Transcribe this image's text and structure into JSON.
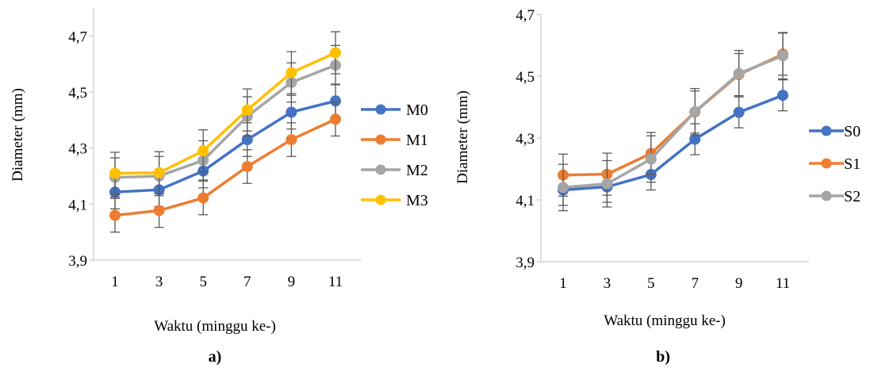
{
  "chart_data": [
    {
      "type": "line",
      "panel_label": "a)",
      "xlabel": "Waktu (minggu ke-)",
      "ylabel": "Diameter (mm)",
      "ylim": [
        3.9,
        4.8
      ],
      "yticks": [
        "3,9",
        "4,1",
        "4,3",
        "4,5",
        "4,7"
      ],
      "x": [
        "1",
        "3",
        "5",
        "7",
        "9",
        "11"
      ],
      "grid": false,
      "legend_position": "right",
      "series": [
        {
          "name": "M0",
          "color": "#4472C4",
          "values": [
            4.143,
            4.151,
            4.218,
            4.33,
            4.428,
            4.468
          ],
          "error": [
            0.06,
            0.06,
            0.06,
            0.06,
            0.06,
            0.06
          ]
        },
        {
          "name": "M1",
          "color": "#ED7D31",
          "values": [
            4.06,
            4.077,
            4.122,
            4.234,
            4.33,
            4.403
          ],
          "error": [
            0.06,
            0.06,
            0.06,
            0.06,
            0.06,
            0.06
          ]
        },
        {
          "name": "M2",
          "color": "#A5A5A5",
          "values": [
            4.195,
            4.2,
            4.256,
            4.413,
            4.534,
            4.596
          ],
          "error": [
            0.07,
            0.07,
            0.07,
            0.07,
            0.07,
            0.07
          ]
        },
        {
          "name": "M3",
          "color": "#FFC000",
          "values": [
            4.21,
            4.212,
            4.29,
            4.436,
            4.569,
            4.64
          ],
          "error": [
            0.075,
            0.075,
            0.075,
            0.075,
            0.075,
            0.075
          ]
        }
      ]
    },
    {
      "type": "line",
      "panel_label": "b)",
      "xlabel": "Waktu (minggu ke-)",
      "ylabel": "Diameter (mm)",
      "ylim": [
        3.9,
        4.7
      ],
      "yticks": [
        "3,9",
        "4,1",
        "4,3",
        "4,5",
        "4,7"
      ],
      "x": [
        "1",
        "3",
        "5",
        "7",
        "9",
        "11"
      ],
      "grid": false,
      "legend_position": "right",
      "series": [
        {
          "name": "S0",
          "color": "#4472C4",
          "values": [
            4.132,
            4.142,
            4.182,
            4.296,
            4.383,
            4.438
          ],
          "error": [
            0.05,
            0.05,
            0.05,
            0.05,
            0.05,
            0.05
          ]
        },
        {
          "name": "S1",
          "color": "#ED7D31",
          "values": [
            4.18,
            4.183,
            4.25,
            4.384,
            4.505,
            4.571
          ],
          "error": [
            0.068,
            0.068,
            0.068,
            0.068,
            0.068,
            0.068
          ]
        },
        {
          "name": "S2",
          "color": "#A5A5A5",
          "values": [
            4.14,
            4.152,
            4.232,
            4.385,
            4.508,
            4.566
          ],
          "error": [
            0.075,
            0.075,
            0.075,
            0.075,
            0.075,
            0.075
          ]
        }
      ]
    }
  ]
}
